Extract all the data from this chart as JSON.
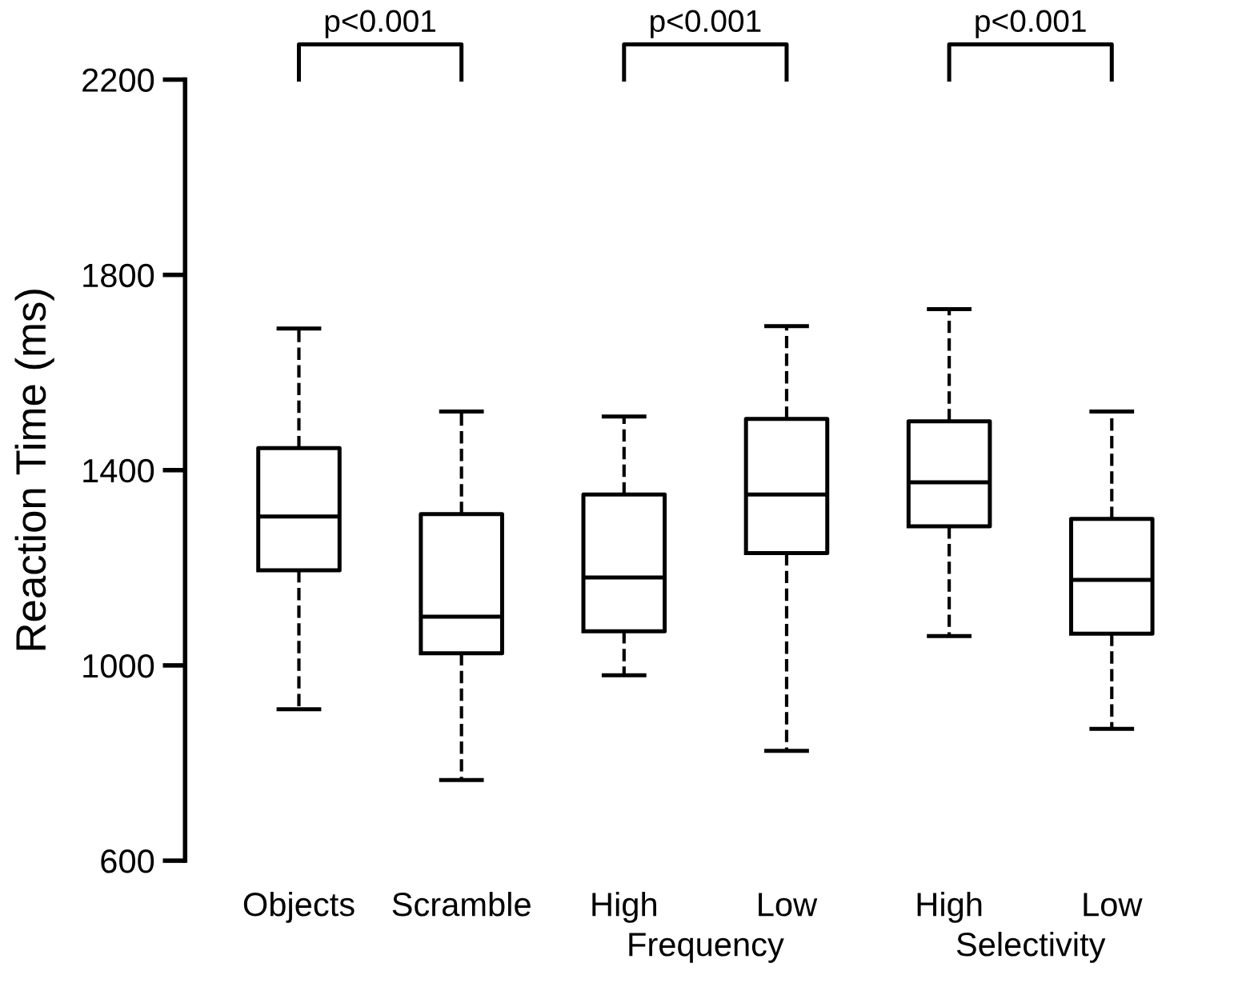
{
  "chart_data": {
    "type": "box",
    "ylabel": "Reaction Time (ms)",
    "categories": [
      "Objects",
      "Scramble",
      "High",
      "Low",
      "High",
      "Low"
    ],
    "boxes": [
      {
        "low": 910,
        "q1": 1195,
        "median": 1305,
        "q3": 1445,
        "high": 1690
      },
      {
        "low": 765,
        "q1": 1025,
        "median": 1100,
        "q3": 1310,
        "high": 1520
      },
      {
        "low": 980,
        "q1": 1070,
        "median": 1180,
        "q3": 1350,
        "high": 1510
      },
      {
        "low": 825,
        "q1": 1230,
        "median": 1350,
        "q3": 1505,
        "high": 1695
      },
      {
        "low": 1060,
        "q1": 1285,
        "median": 1375,
        "q3": 1500,
        "high": 1730
      },
      {
        "low": 870,
        "q1": 1065,
        "median": 1175,
        "q3": 1300,
        "high": 1520
      }
    ],
    "ylim": [
      600,
      2200
    ],
    "yticks": [
      600,
      1000,
      1400,
      1800,
      2200
    ],
    "annotations": [
      "p<0.001",
      "p<0.001",
      "p<0.001",
      "Frequency",
      "Selectivity"
    ],
    "line_style": "dashed",
    "grid": false,
    "tick_labels": "y"
  }
}
